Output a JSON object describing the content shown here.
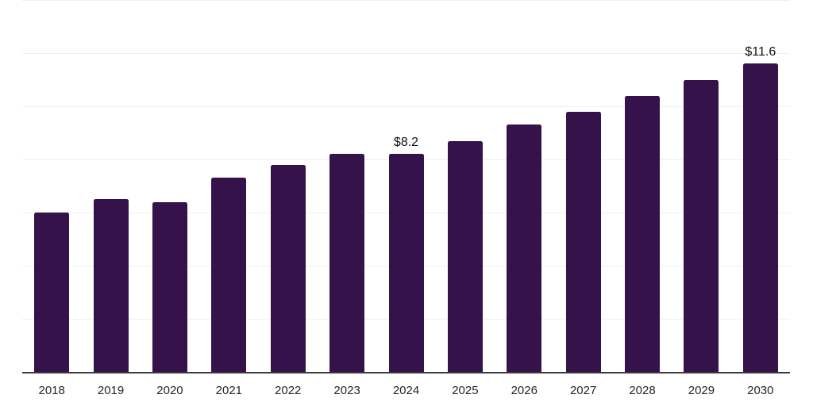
{
  "chart_data": {
    "type": "bar",
    "title": "",
    "categories": [
      "2018",
      "2019",
      "2020",
      "2021",
      "2022",
      "2023",
      "2024",
      "2025",
      "2026",
      "2027",
      "2028",
      "2029",
      "2030"
    ],
    "values": [
      6.0,
      6.5,
      6.4,
      7.3,
      7.8,
      8.2,
      8.2,
      8.7,
      9.3,
      9.8,
      10.4,
      11.0,
      11.6
    ],
    "data_labels": [
      {
        "category": "2024",
        "text": "$8.2"
      },
      {
        "category": "2030",
        "text": "$11.6"
      }
    ],
    "xlabel": "",
    "ylabel": "",
    "ylim": [
      0,
      14
    ],
    "grid": true,
    "grid_step": 2,
    "y_tick_labels_visible": false,
    "legend": false,
    "colors": {
      "bar": "#36124b",
      "gridline": "#f0f0f0",
      "axis_line": "#3d3d3d",
      "data_label": "#111111",
      "tick_label": "#262626",
      "background": "#ffffff"
    }
  }
}
